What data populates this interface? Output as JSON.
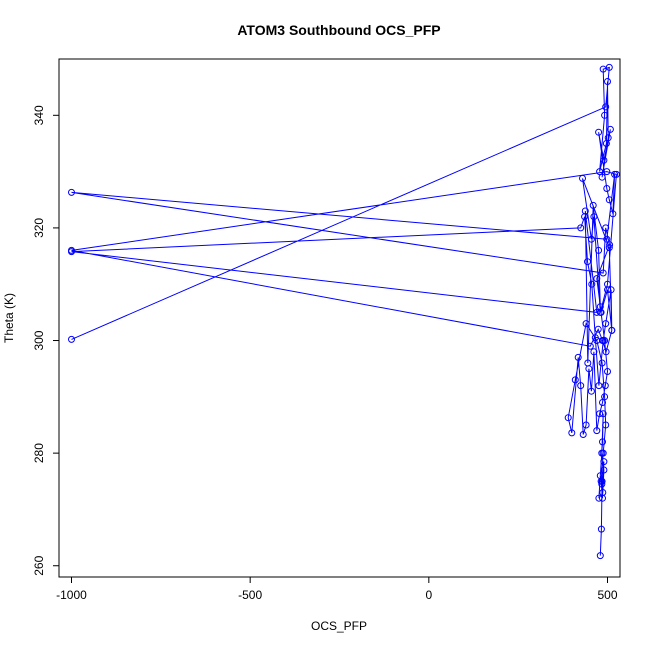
{
  "chart_data": {
    "type": "scatter",
    "title": "ATOM3 Southbound OCS_PFP",
    "xlabel": "OCS_PFP",
    "ylabel": "Theta (K)",
    "xlim": [
      -1035,
      535
    ],
    "ylim": [
      258,
      350
    ],
    "xticks": [
      -1000,
      -500,
      0,
      500
    ],
    "yticks": [
      260,
      280,
      300,
      320,
      340
    ],
    "grid": false,
    "series_color": "#0000ff",
    "series": [
      {
        "mode": "lines+markers",
        "x": [
          -1000,
          495,
          505,
          488,
          492,
          478,
          497,
          500,
          502,
          485,
          508,
          490,
          475,
          498,
          505,
          515,
          520,
          498,
          -1000,
          488,
          495,
          506,
          470,
          482,
          500,
          512,
          496,
          486,
          474,
          452,
          -1000,
          498,
          525,
          500,
          480,
          462,
          455,
          430,
          505,
          512,
          510,
          495,
          488,
          476,
          466,
          456,
          444,
          436,
          425,
          -1000,
          470,
          438,
          445,
          460,
          475,
          480,
          492,
          500,
          494,
          486,
          478,
          470,
          462,
          455,
          448,
          440,
          432,
          425,
          418,
          400,
          390,
          410,
          440,
          470,
          485,
          492,
          495,
          488,
          482,
          486,
          490,
          484,
          480,
          476,
          486,
          488,
          484,
          490,
          487,
          485,
          483,
          480
        ],
        "y": [
          300.2,
          341.5,
          348.5,
          348.2,
          340.0,
          330.0,
          335.0,
          346.0,
          336.0,
          329.0,
          337.5,
          332.0,
          337.0,
          327.0,
          325.0,
          322.5,
          329.5,
          318.0,
          326.3,
          312.0,
          320.0,
          317.0,
          311.0,
          305.0,
          309.0,
          301.8,
          298.0,
          300.0,
          302.0,
          299.0,
          316.0,
          330.0,
          329.5,
          310.0,
          305.0,
          322.0,
          318.0,
          328.8,
          316.5,
          301.8,
          309.0,
          303.0,
          300.0,
          292.0,
          300.5,
          310.0,
          314.0,
          322.0,
          320.0,
          315.8,
          305.0,
          323.0,
          296.0,
          324.0,
          316.0,
          306.0,
          300.0,
          294.5,
          292.0,
          289.0,
          287.0,
          284.0,
          298.0,
          291.0,
          295.0,
          285.0,
          283.3,
          292.0,
          297.0,
          283.6,
          286.3,
          293.0,
          303.0,
          300.0,
          296.0,
          290.0,
          285.0,
          280.0,
          275.0,
          272.0,
          278.5,
          274.5,
          276.0,
          272.0,
          282.0,
          287.0,
          280.0,
          277.0,
          273.0,
          275.0,
          266.5,
          261.8
        ]
      }
    ]
  }
}
